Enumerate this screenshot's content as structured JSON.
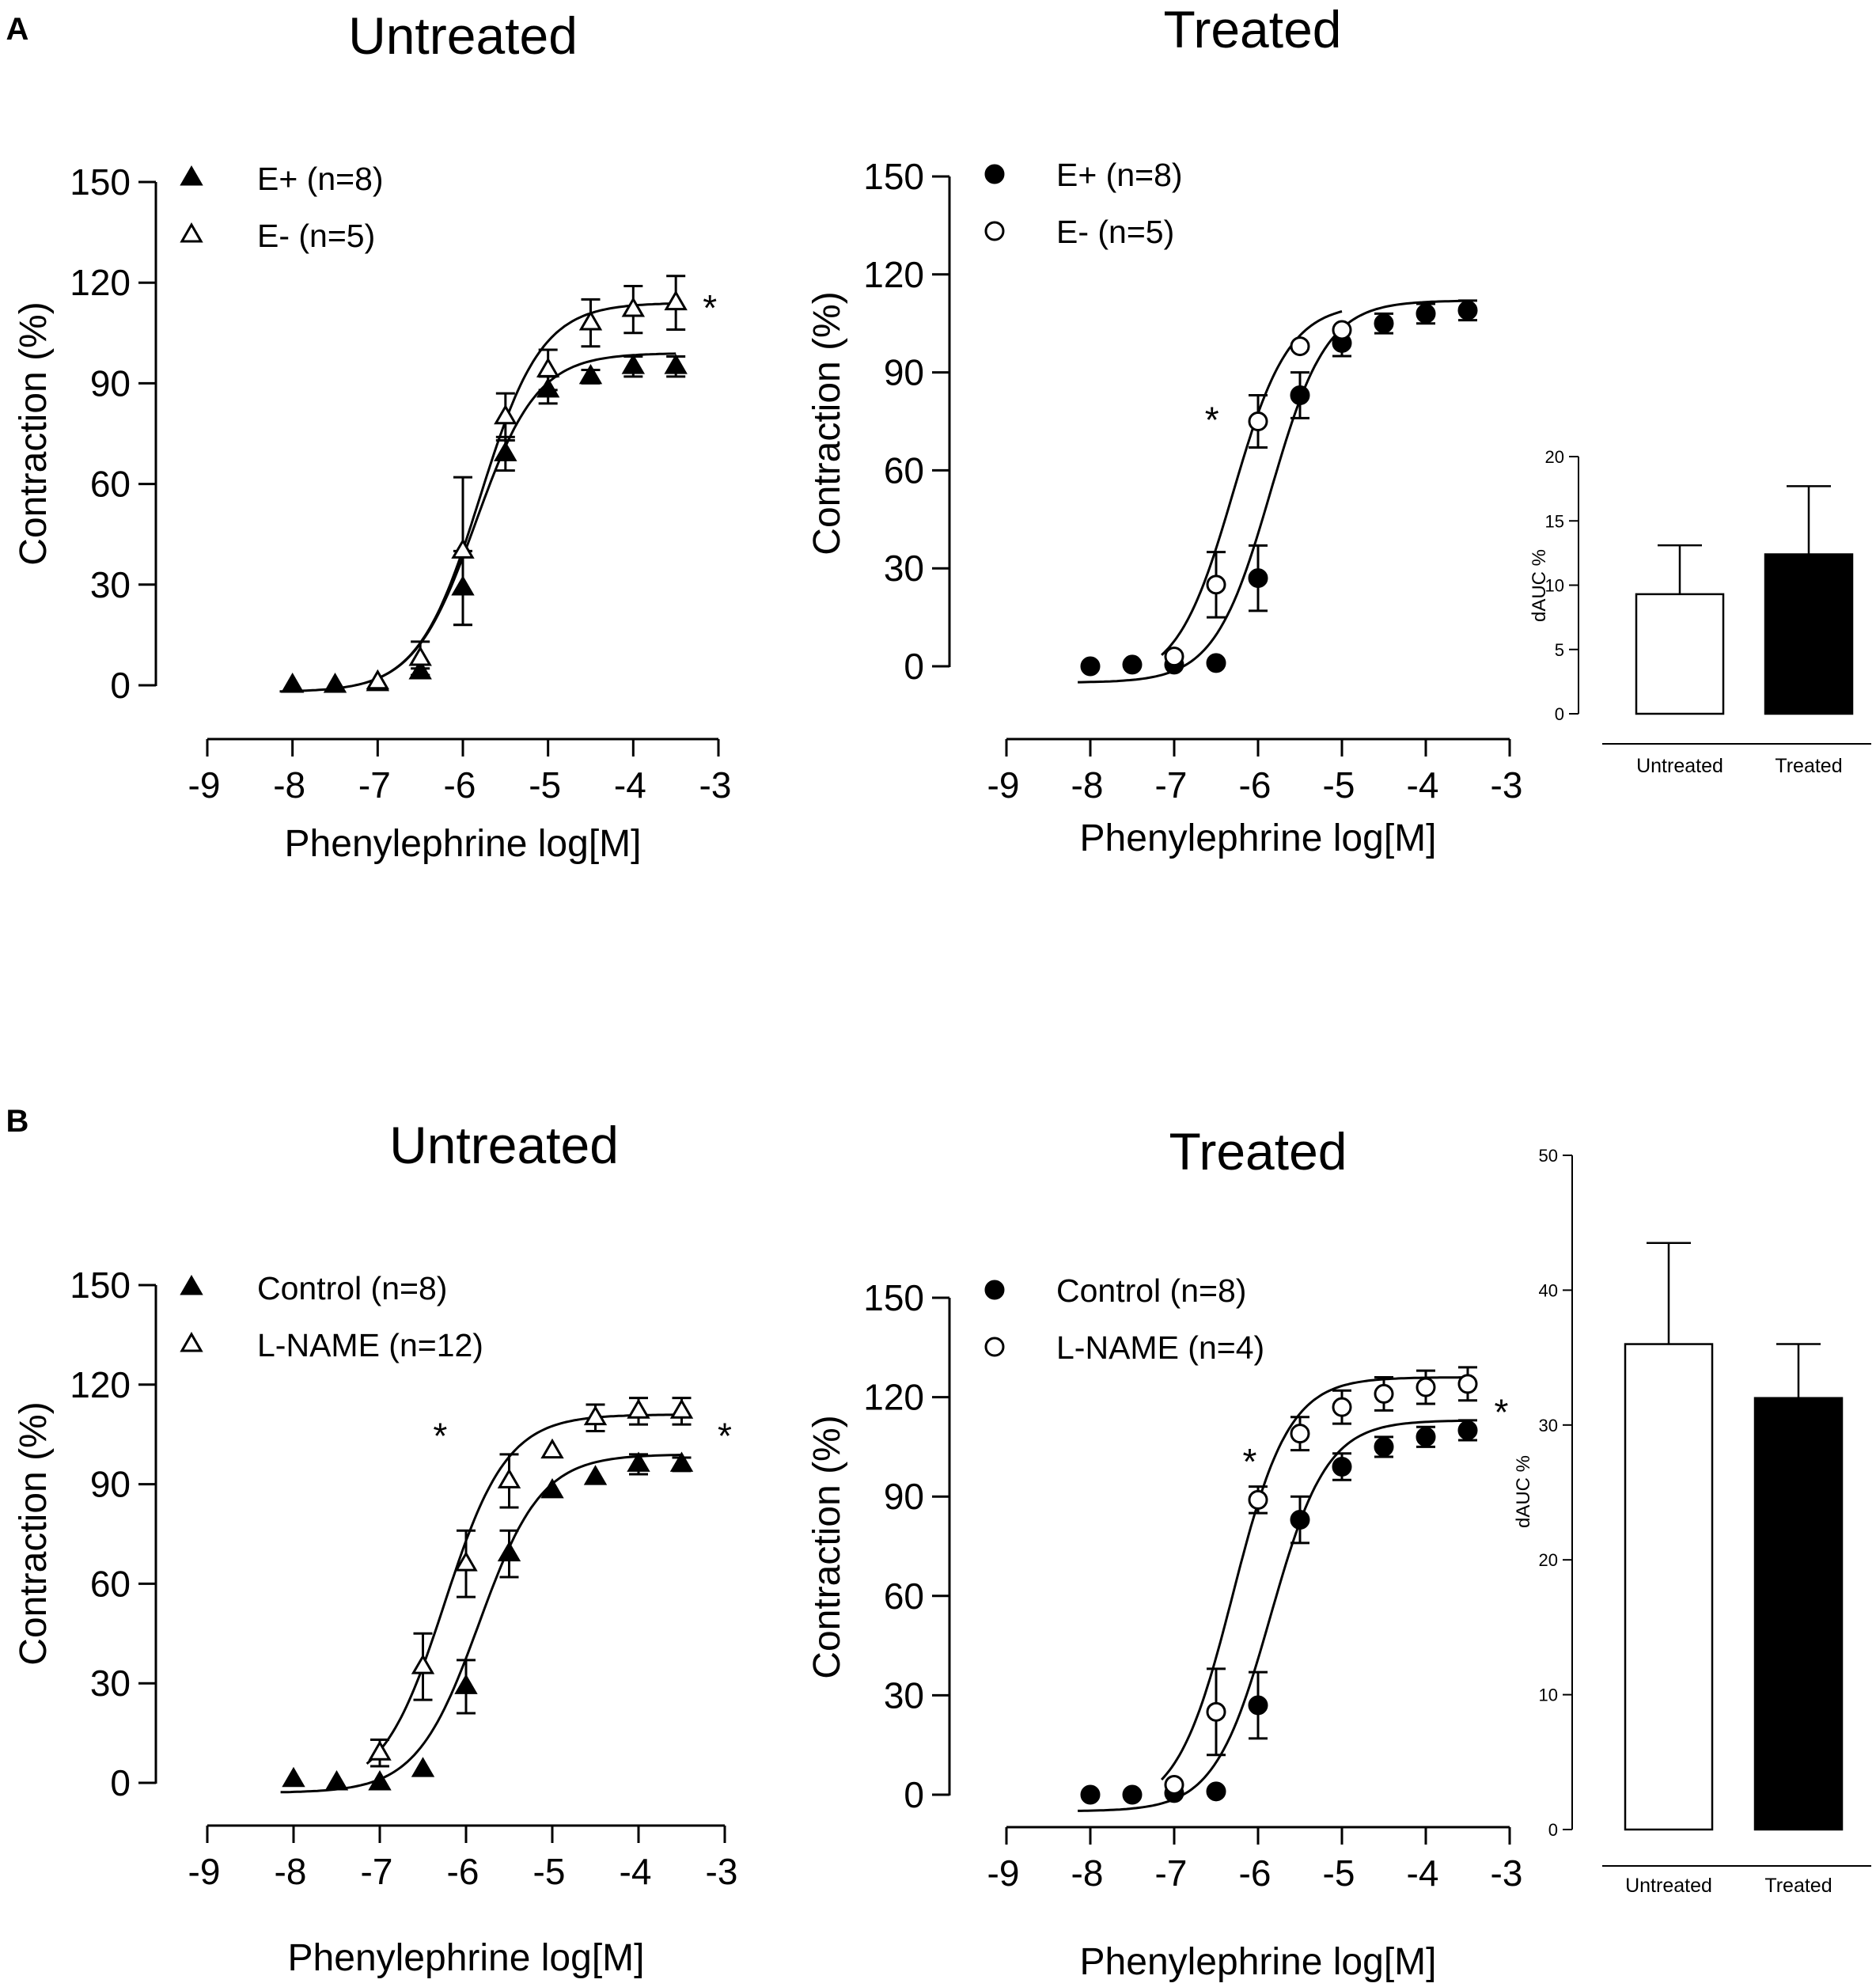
{
  "figure": {
    "colors": {
      "ink": "#000000",
      "background": "#ffffff",
      "open_fill": "#ffffff",
      "filled": "#000000"
    }
  },
  "chart_data": [
    {
      "id": "A-untreated",
      "panel_letter": "A",
      "type": "scatter",
      "fit": "sigmoid",
      "title": "Untreated",
      "xlabel": "Phenylephrine log[M]",
      "ylabel": "Contraction (%)",
      "xlim": [
        -9,
        -3
      ],
      "ylim": [
        0,
        150
      ],
      "xticks": [
        -9,
        -8,
        -7,
        -6,
        -5,
        -4,
        -3
      ],
      "yticks": [
        0,
        30,
        60,
        90,
        120,
        150
      ],
      "legend_position": "top-left",
      "significance": [
        {
          "x": -3.1,
          "y": 113,
          "label": "*"
        }
      ],
      "series": [
        {
          "name": "E+ (n=8)",
          "marker": "triangle",
          "fill": "filled",
          "x": [
            -8,
            -7.5,
            -7,
            -6.5,
            -6,
            -5.5,
            -5,
            -4.5,
            -4,
            -3.5
          ],
          "y": [
            0,
            0,
            0.5,
            4,
            29,
            69,
            88,
            92,
            95,
            95
          ],
          "err": [
            0,
            0,
            0,
            1,
            11,
            5,
            4,
            2,
            3,
            3
          ],
          "fit": {
            "bottom": -2,
            "top": 99,
            "logEC50": -5.85,
            "hill": 1.2
          }
        },
        {
          "name": "E- (n=5)",
          "marker": "triangle",
          "fill": "open",
          "x": [
            -7,
            -6.5,
            -6,
            -5.5,
            -5,
            -4.5,
            -4,
            -3.5
          ],
          "y": [
            1,
            8,
            40,
            80,
            94,
            108,
            112,
            114
          ],
          "err": [
            0,
            5,
            22,
            7,
            6,
            7,
            7,
            8
          ],
          "fit": {
            "bottom": -2,
            "top": 114,
            "logEC50": -5.8,
            "hill": 1.2
          }
        }
      ]
    },
    {
      "id": "A-treated",
      "type": "scatter",
      "fit": "sigmoid",
      "title": "Treated",
      "xlabel": "Phenylephrine log[M]",
      "ylabel": "Contraction (%)",
      "xlim": [
        -9,
        -3
      ],
      "ylim": [
        0,
        150
      ],
      "xticks": [
        -9,
        -8,
        -7,
        -6,
        -5,
        -4,
        -3
      ],
      "yticks": [
        0,
        30,
        60,
        90,
        120,
        150
      ],
      "legend_position": "top-left",
      "significance": [
        {
          "x": -6.55,
          "y": 76,
          "label": "*"
        }
      ],
      "series": [
        {
          "name": "E+ (n=8)",
          "marker": "circle",
          "fill": "filled",
          "x": [
            -8,
            -7.5,
            -7,
            -6.5,
            -6,
            -5.5,
            -5,
            -4.5,
            -4,
            -3.5
          ],
          "y": [
            0,
            0.5,
            0.5,
            1,
            27,
            83,
            99,
            105,
            108,
            109
          ],
          "err": [
            0,
            0,
            0,
            0,
            10,
            7,
            4,
            3,
            3,
            3
          ],
          "fit": {
            "bottom": -5,
            "top": 112,
            "logEC50": -5.85,
            "hill": 1.3
          }
        },
        {
          "name": "E- (n=5)",
          "marker": "circle",
          "fill": "open",
          "x": [
            -7,
            -6.5,
            -6,
            -5.5,
            -5
          ],
          "y": [
            3,
            25,
            75,
            98,
            103
          ],
          "err": [
            0,
            10,
            8,
            0,
            0
          ],
          "fit": {
            "bottom": -5,
            "top": 111,
            "logEC50": -6.3,
            "hill": 1.3
          }
        }
      ]
    },
    {
      "id": "A-inset",
      "type": "bar",
      "categories": [
        "Untreated",
        "Treated"
      ],
      "values": [
        9.3,
        12.4
      ],
      "errors": [
        3.8,
        5.3
      ],
      "fills": [
        "open",
        "filled"
      ],
      "ylabel": "dAUC %",
      "ylim": [
        0,
        20
      ],
      "yticks": [
        0,
        5,
        10,
        15,
        20
      ]
    },
    {
      "id": "B-untreated",
      "panel_letter": "B",
      "type": "scatter",
      "fit": "sigmoid",
      "title": "Untreated",
      "xlabel": "Phenylephrine log[M]",
      "ylabel": "Contraction (%)",
      "xlim": [
        -9,
        -3
      ],
      "ylim": [
        0,
        150
      ],
      "xticks": [
        -9,
        -8,
        -7,
        -6,
        -5,
        -4,
        -3
      ],
      "yticks": [
        0,
        30,
        60,
        90,
        120,
        150
      ],
      "legend_position": "top-left",
      "significance": [
        {
          "x": -6.3,
          "y": 105,
          "label": "*"
        },
        {
          "x": -3.0,
          "y": 105,
          "label": "*"
        }
      ],
      "series": [
        {
          "name": "Control (n=8)",
          "marker": "triangle",
          "fill": "filled",
          "x": [
            -8,
            -7.5,
            -7,
            -6.5,
            -6,
            -5.5,
            -5,
            -4.5,
            -4,
            -3.5
          ],
          "y": [
            1,
            0,
            0,
            4,
            29,
            69,
            88,
            92,
            96,
            96
          ],
          "err": [
            0,
            0,
            0,
            0,
            8,
            7,
            0,
            0,
            3,
            2
          ],
          "fit": {
            "bottom": -3,
            "top": 99,
            "logEC50": -5.85,
            "hill": 1.2
          }
        },
        {
          "name": "L-NAME (n=12)",
          "marker": "triangle",
          "fill": "open",
          "x": [
            -7,
            -6.5,
            -6,
            -5.5,
            -5,
            -4.5,
            -4,
            -3.5
          ],
          "y": [
            9,
            35,
            66,
            91,
            100,
            110,
            112,
            112
          ],
          "err": [
            4,
            10,
            10,
            8,
            0,
            4,
            4,
            4
          ],
          "fit": {
            "bottom": -3,
            "top": 111,
            "logEC50": -6.25,
            "hill": 1.2
          }
        }
      ]
    },
    {
      "id": "B-treated",
      "type": "scatter",
      "fit": "sigmoid",
      "title": "Treated",
      "xlabel": "Phenylephrine log[M]",
      "ylabel": "Contraction (%)",
      "xlim": [
        -9,
        -3
      ],
      "ylim": [
        0,
        150
      ],
      "xticks": [
        -9,
        -8,
        -7,
        -6,
        -5,
        -4,
        -3
      ],
      "yticks": [
        0,
        30,
        60,
        90,
        120,
        150
      ],
      "legend_position": "top-left",
      "significance": [
        {
          "x": -6.1,
          "y": 101,
          "label": "*"
        },
        {
          "x": -3.1,
          "y": 116,
          "label": "*"
        }
      ],
      "series": [
        {
          "name": "Control (n=8)",
          "marker": "circle",
          "fill": "filled",
          "x": [
            -8,
            -7.5,
            -7,
            -6.5,
            -6,
            -5.5,
            -5,
            -4.5,
            -4,
            -3.5
          ],
          "y": [
            0,
            0,
            0.5,
            1,
            27,
            83,
            99,
            105,
            108,
            110
          ],
          "err": [
            0,
            0,
            0,
            0,
            10,
            7,
            4,
            3,
            3,
            3
          ],
          "fit": {
            "bottom": -5,
            "top": 113,
            "logEC50": -5.85,
            "hill": 1.3
          }
        },
        {
          "name": "L-NAME (n=4)",
          "marker": "circle",
          "fill": "open",
          "x": [
            -7,
            -6.5,
            -6,
            -5.5,
            -5,
            -4.5,
            -4,
            -3.5
          ],
          "y": [
            3,
            25,
            89,
            109,
            117,
            121,
            123,
            124
          ],
          "err": [
            0,
            13,
            4,
            5,
            5,
            5,
            5,
            5
          ],
          "fit": {
            "bottom": -5,
            "top": 126,
            "logEC50": -6.3,
            "hill": 1.3
          }
        }
      ]
    },
    {
      "id": "B-inset",
      "type": "bar",
      "categories": [
        "Untreated",
        "Treated"
      ],
      "values": [
        36,
        32
      ],
      "errors": [
        7.5,
        4
      ],
      "fills": [
        "open",
        "filled"
      ],
      "ylabel": "dAUC %",
      "ylim": [
        0,
        50
      ],
      "yticks": [
        0,
        10,
        20,
        30,
        40,
        50
      ]
    }
  ]
}
